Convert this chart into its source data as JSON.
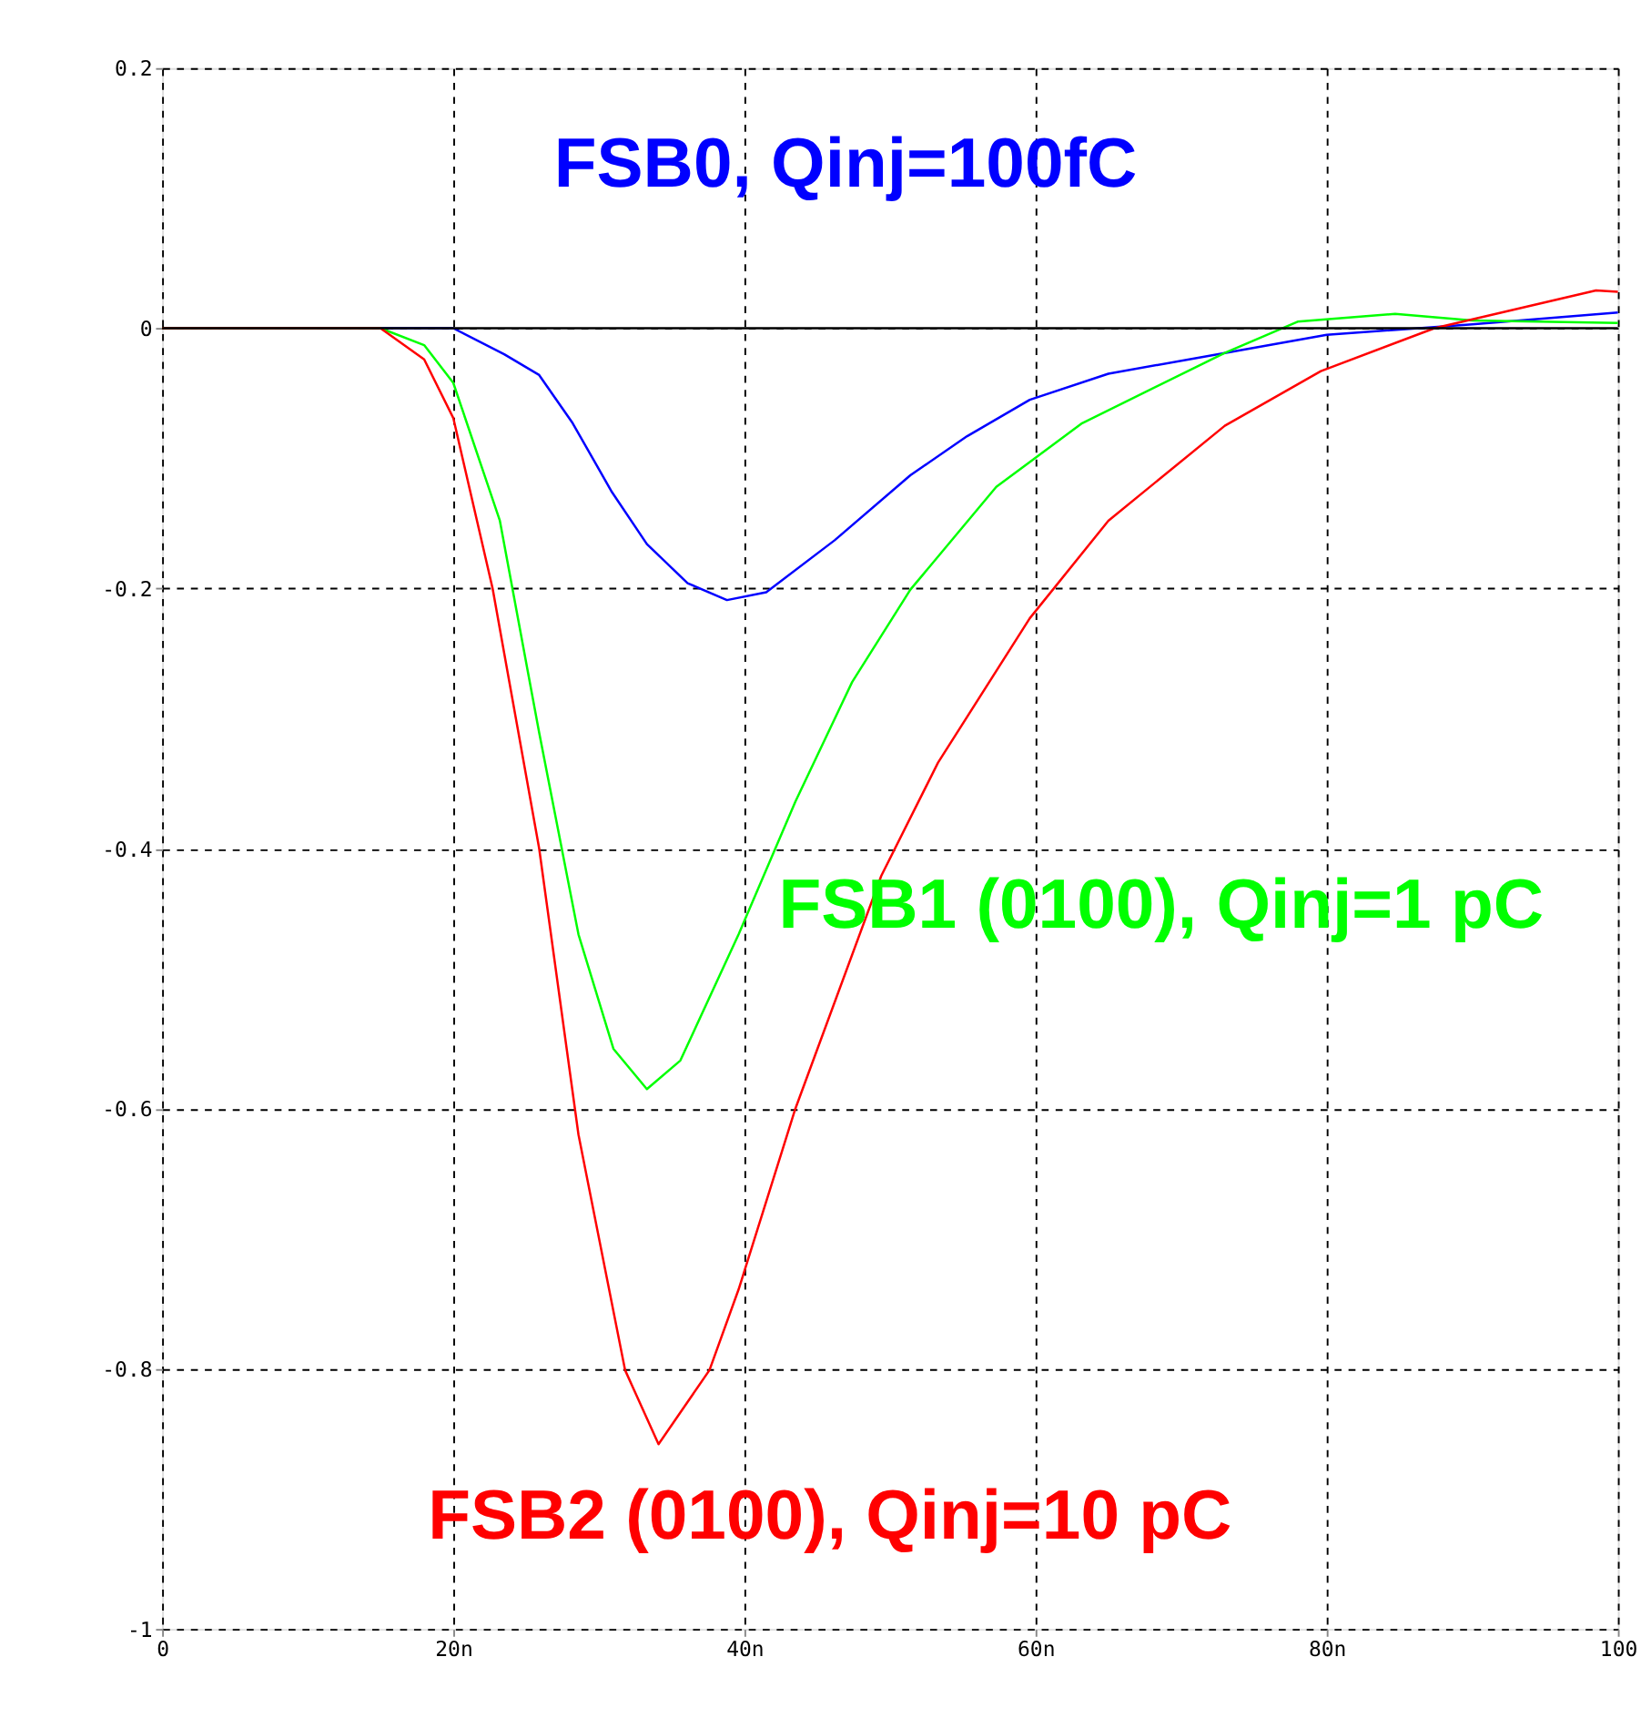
{
  "chart_data": {
    "type": "line",
    "xlim": [
      0,
      100
    ],
    "ylim": [
      -1,
      0.2
    ],
    "xticks": [
      0,
      {
        "value": 20,
        "label": "20n"
      },
      {
        "value": 40,
        "label": "40n"
      },
      {
        "value": 60,
        "label": "60n"
      },
      {
        "value": 80,
        "label": "80n"
      },
      100
    ],
    "yticks": [
      -1,
      -0.8,
      -0.6,
      -0.4,
      -0.2,
      0,
      0.2
    ],
    "grid": true,
    "marker": "none",
    "line_style": "solid",
    "ref_lines": [
      {
        "axis": "y",
        "value": 0,
        "color": "#000000",
        "line_style": "solid"
      }
    ],
    "series": [
      {
        "name": "FSB0, Qinj=100fC",
        "color": "#0000ff",
        "x": [
          15,
          20,
          23.5,
          25.9,
          28.2,
          30.9,
          33.3,
          36.1,
          38.8,
          41.5,
          46.2,
          51.4,
          55.3,
          59.6,
          65,
          73,
          80,
          90,
          100
        ],
        "values": [
          0,
          0,
          -0.02,
          -0.036,
          -0.073,
          -0.126,
          -0.166,
          -0.196,
          -0.209,
          -0.203,
          -0.163,
          -0.113,
          -0.083,
          -0.055,
          -0.035,
          -0.019,
          -0.005,
          0.003,
          0.012
        ]
      },
      {
        "name": "FSB1 (0100), Qinj=1 pC",
        "color": "#00ff00",
        "x": [
          0,
          10,
          15,
          18,
          20,
          23.2,
          25.9,
          28.6,
          31,
          33.3,
          35.6,
          39.6,
          43.5,
          47.4,
          51.4,
          57.3,
          63.2,
          73,
          78,
          84.7,
          90,
          100
        ],
        "values": [
          0,
          0,
          0,
          -0.013,
          -0.042,
          -0.148,
          -0.311,
          -0.466,
          -0.554,
          -0.585,
          -0.563,
          -0.466,
          -0.364,
          -0.272,
          -0.201,
          -0.122,
          -0.073,
          -0.019,
          0.005,
          0.011,
          0.006,
          0.004
        ]
      },
      {
        "name": "FSB2 (0100), Qinj=10 pC",
        "color": "#ff0000",
        "x": [
          0,
          10,
          15,
          18,
          20,
          22.7,
          25.9,
          28.6,
          31.8,
          34.1,
          37.6,
          39.6,
          43.5,
          49.4,
          53.3,
          59.6,
          65,
          73,
          79.6,
          87.4,
          98.5,
          100
        ],
        "values": [
          0,
          0,
          0,
          -0.024,
          -0.069,
          -0.2,
          -0.4,
          -0.62,
          -0.801,
          -0.858,
          -0.801,
          -0.739,
          -0.6,
          -0.421,
          -0.334,
          -0.223,
          -0.148,
          -0.075,
          -0.033,
          0,
          0.029,
          0.028
        ]
      }
    ]
  }
}
